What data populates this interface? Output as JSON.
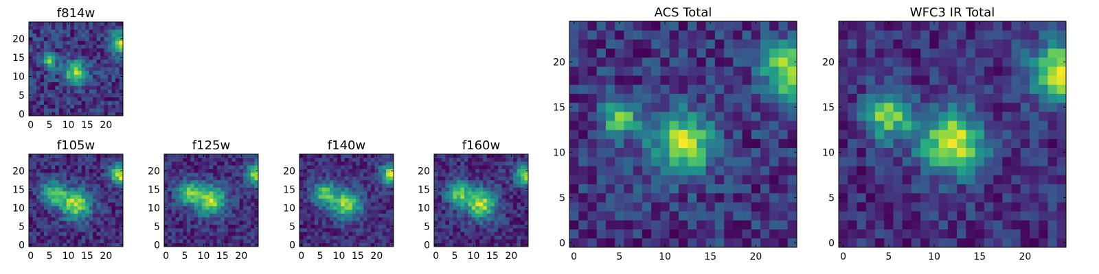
{
  "chart_data": [
    {
      "type": "heatmap",
      "id": "f814w",
      "title": "f814w",
      "grid_size": 25,
      "xlim": [
        -0.5,
        24.5
      ],
      "ylim": [
        -0.5,
        24.5
      ],
      "xticks": [
        0,
        5,
        10,
        15,
        20
      ],
      "yticks": [
        0,
        5,
        10,
        15,
        20
      ],
      "colormap": "viridis",
      "noise": 0.22,
      "seed": 11,
      "sources": [
        {
          "x": 5,
          "y": 14,
          "amp": 0.75,
          "sigma": 1.4
        },
        {
          "x": 12,
          "y": 11,
          "amp": 0.85,
          "sigma": 2.2
        },
        {
          "x": 24,
          "y": 19,
          "amp": 0.9,
          "sigma": 2.0
        }
      ]
    },
    {
      "type": "heatmap",
      "id": "f105w",
      "title": "f105w",
      "grid_size": 25,
      "xlim": [
        -0.5,
        24.5
      ],
      "ylim": [
        -0.5,
        24.5
      ],
      "xticks": [
        0,
        5,
        10,
        15,
        20
      ],
      "yticks": [
        0,
        5,
        10,
        15,
        20
      ],
      "colormap": "viridis",
      "noise": 0.16,
      "seed": 23,
      "sources": [
        {
          "x": 6,
          "y": 14,
          "amp": 0.7,
          "sigma": 2.2
        },
        {
          "x": 12,
          "y": 11,
          "amp": 0.85,
          "sigma": 2.8
        },
        {
          "x": 24,
          "y": 19,
          "amp": 0.9,
          "sigma": 2.0
        }
      ]
    },
    {
      "type": "heatmap",
      "id": "f125w",
      "title": "f125w",
      "grid_size": 25,
      "xlim": [
        -0.5,
        24.5
      ],
      "ylim": [
        -0.5,
        24.5
      ],
      "xticks": [
        0,
        5,
        10,
        15,
        20
      ],
      "yticks": [
        0,
        5,
        10,
        15,
        20
      ],
      "colormap": "viridis",
      "noise": 0.16,
      "seed": 37,
      "sources": [
        {
          "x": 6,
          "y": 14,
          "amp": 0.7,
          "sigma": 2.2
        },
        {
          "x": 12,
          "y": 12,
          "amp": 0.85,
          "sigma": 2.8
        },
        {
          "x": 24,
          "y": 19,
          "amp": 0.9,
          "sigma": 2.0
        }
      ]
    },
    {
      "type": "heatmap",
      "id": "f140w",
      "title": "f140w",
      "grid_size": 25,
      "xlim": [
        -0.5,
        24.5
      ],
      "ylim": [
        -0.5,
        24.5
      ],
      "xticks": [
        0,
        5,
        10,
        15,
        20
      ],
      "yticks": [
        0,
        5,
        10,
        15,
        20
      ],
      "colormap": "viridis",
      "noise": 0.16,
      "seed": 41,
      "sources": [
        {
          "x": 6,
          "y": 14,
          "amp": 0.7,
          "sigma": 2.2
        },
        {
          "x": 12,
          "y": 11,
          "amp": 0.85,
          "sigma": 2.8
        },
        {
          "x": 24,
          "y": 19,
          "amp": 0.9,
          "sigma": 2.0
        }
      ]
    },
    {
      "type": "heatmap",
      "id": "f160w",
      "title": "f160w",
      "grid_size": 25,
      "xlim": [
        -0.5,
        24.5
      ],
      "ylim": [
        -0.5,
        24.5
      ],
      "xticks": [
        0,
        5,
        10,
        15,
        20
      ],
      "yticks": [
        0,
        5,
        10,
        15,
        20
      ],
      "colormap": "viridis",
      "noise": 0.16,
      "seed": 53,
      "sources": [
        {
          "x": 6,
          "y": 14,
          "amp": 0.7,
          "sigma": 2.2
        },
        {
          "x": 12,
          "y": 11,
          "amp": 0.85,
          "sigma": 2.8
        },
        {
          "x": 24,
          "y": 19,
          "amp": 0.9,
          "sigma": 2.0
        }
      ]
    },
    {
      "type": "heatmap",
      "id": "acs-total",
      "title": "ACS Total",
      "grid_size": 25,
      "xlim": [
        -0.5,
        24.5
      ],
      "ylim": [
        -0.5,
        24.5
      ],
      "xticks": [
        0,
        5,
        10,
        15,
        20
      ],
      "yticks": [
        0,
        5,
        10,
        15,
        20
      ],
      "colormap": "viridis",
      "noise": 0.2,
      "seed": 67,
      "sources": [
        {
          "x": 5,
          "y": 14,
          "amp": 0.75,
          "sigma": 1.5
        },
        {
          "x": 12,
          "y": 11,
          "amp": 0.85,
          "sigma": 2.4
        },
        {
          "x": 24,
          "y": 19,
          "amp": 0.95,
          "sigma": 2.2
        }
      ]
    },
    {
      "type": "heatmap",
      "id": "wfc3-ir-total",
      "title": "WFC3 IR Total",
      "grid_size": 25,
      "xlim": [
        -0.5,
        24.5
      ],
      "ylim": [
        -0.5,
        24.5
      ],
      "xticks": [
        0,
        5,
        10,
        15,
        20
      ],
      "yticks": [
        0,
        5,
        10,
        15,
        20
      ],
      "colormap": "viridis",
      "noise": 0.16,
      "seed": 79,
      "sources": [
        {
          "x": 5,
          "y": 14,
          "amp": 0.75,
          "sigma": 1.8
        },
        {
          "x": 12,
          "y": 11,
          "amp": 0.9,
          "sigma": 2.4
        },
        {
          "x": 24,
          "y": 19,
          "amp": 0.95,
          "sigma": 2.2
        }
      ]
    }
  ]
}
